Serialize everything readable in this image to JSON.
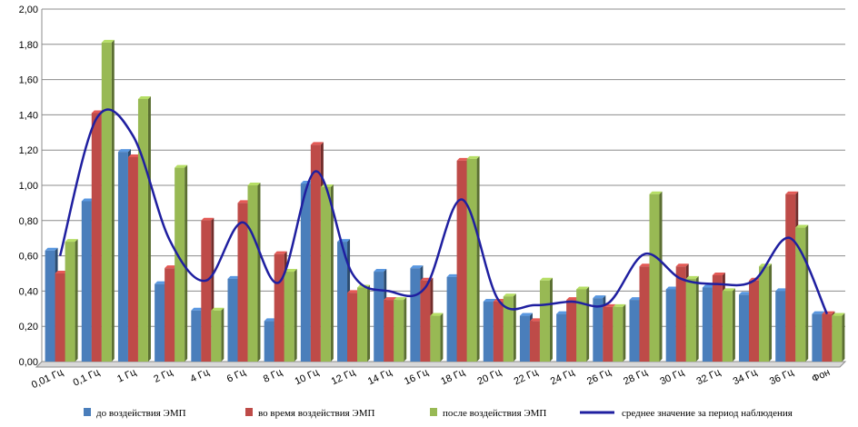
{
  "chart_data": {
    "type": "bar",
    "title": "",
    "xlabel": "",
    "ylabel": "",
    "ylim": [
      0,
      2.0
    ],
    "y_ticks": [
      "0,00",
      "0,20",
      "0,40",
      "0,60",
      "0,80",
      "1,00",
      "1,20",
      "1,40",
      "1,60",
      "1,80",
      "2,00"
    ],
    "grid": true,
    "legend_position": "bottom",
    "categories": [
      "0,01 Гц",
      "0,1 Гц",
      "1 Гц",
      "2 Гц",
      "4 Гц",
      "6 Гц",
      "8 Гц",
      "10 Гц",
      "12 Гц",
      "14 Гц",
      "16 Гц",
      "18 Гц",
      "20 Гц",
      "22 Гц",
      "24 Гц",
      "26 Гц",
      "28 Гц",
      "30 Гц",
      "32 Гц",
      "34 Гц",
      "36 Гц",
      "Фон"
    ],
    "series": [
      {
        "name": "до воздействия ЭМП",
        "color": "#4a7ebb",
        "values": [
          0.63,
          0.91,
          1.19,
          0.44,
          0.29,
          0.47,
          0.23,
          1.01,
          0.68,
          0.51,
          0.53,
          0.48,
          0.34,
          0.26,
          0.27,
          0.36,
          0.35,
          0.41,
          0.42,
          0.38,
          0.4,
          0.27
        ]
      },
      {
        "name": "во время воздействия ЭМП",
        "color": "#be4b48",
        "values": [
          0.5,
          1.41,
          1.16,
          0.53,
          0.8,
          0.9,
          0.61,
          1.23,
          0.39,
          0.35,
          0.46,
          1.14,
          0.34,
          0.23,
          0.35,
          0.31,
          0.54,
          0.54,
          0.49,
          0.46,
          0.95,
          0.27
        ]
      },
      {
        "name": "после воздействия ЭМП",
        "color": "#98b954",
        "values": [
          0.68,
          1.81,
          1.49,
          1.1,
          0.29,
          1.0,
          0.51,
          0.99,
          0.42,
          0.35,
          0.26,
          1.15,
          0.37,
          0.46,
          0.41,
          0.31,
          0.95,
          0.47,
          0.4,
          0.54,
          0.76,
          0.26
        ]
      },
      {
        "name": "среднее значение за период наблюдения",
        "type": "line",
        "color": "#1f1fa0",
        "values": [
          0.6,
          1.38,
          1.28,
          0.69,
          0.46,
          0.79,
          0.45,
          1.08,
          0.5,
          0.4,
          0.42,
          0.92,
          0.35,
          0.32,
          0.34,
          0.33,
          0.61,
          0.47,
          0.44,
          0.46,
          0.7,
          0.27
        ]
      }
    ]
  }
}
